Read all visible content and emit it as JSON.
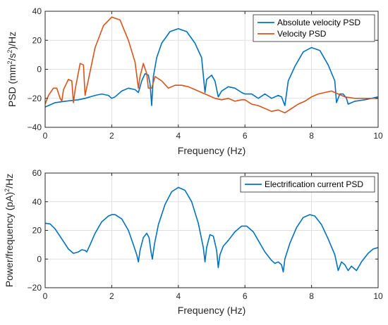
{
  "chart_data": [
    {
      "type": "line",
      "xlabel": "Frequency (Hz)",
      "ylabel_parts": {
        "a": "PSD (mm",
        "b": "2",
        "c": "/s",
        "d": "2",
        "e": ")/Hz"
      },
      "xlim": [
        0,
        10
      ],
      "ylim": [
        -40,
        40
      ],
      "xticks": [
        0,
        2,
        4,
        6,
        8,
        10
      ],
      "yticks": [
        -40,
        -20,
        0,
        20,
        40
      ],
      "xtick_labels": [
        "0",
        "2",
        "4",
        "6",
        "8",
        "10"
      ],
      "ytick_labels": [
        "−40",
        "−20",
        "0",
        "20",
        "40"
      ],
      "grid": true,
      "legend_position": "top-right",
      "series": [
        {
          "name": "Absolute velocity PSD",
          "color": "#0072BD",
          "points": [
            [
              0,
              -26
            ],
            [
              0.3,
              -23
            ],
            [
              0.6,
              -22
            ],
            [
              1.0,
              -21
            ],
            [
              1.2,
              -20
            ],
            [
              1.5,
              -18
            ],
            [
              1.7,
              -17
            ],
            [
              1.9,
              -18
            ],
            [
              2.0,
              -20
            ],
            [
              2.1,
              -19
            ],
            [
              2.3,
              -15
            ],
            [
              2.5,
              -13
            ],
            [
              2.7,
              -14
            ],
            [
              2.8,
              -16
            ],
            [
              2.9,
              -8
            ],
            [
              3.0,
              -3
            ],
            [
              3.1,
              -4
            ],
            [
              3.15,
              -10
            ],
            [
              3.2,
              -25
            ],
            [
              3.25,
              -5
            ],
            [
              3.35,
              8
            ],
            [
              3.5,
              18
            ],
            [
              3.75,
              26
            ],
            [
              4.0,
              28
            ],
            [
              4.25,
              26
            ],
            [
              4.5,
              18
            ],
            [
              4.7,
              8
            ],
            [
              4.8,
              -16
            ],
            [
              4.85,
              -7
            ],
            [
              5.0,
              -4
            ],
            [
              5.1,
              -8
            ],
            [
              5.2,
              -19
            ],
            [
              5.3,
              -15
            ],
            [
              5.5,
              -12
            ],
            [
              5.7,
              -13
            ],
            [
              5.9,
              -16
            ],
            [
              6.0,
              -17
            ],
            [
              6.2,
              -17
            ],
            [
              6.4,
              -20
            ],
            [
              6.6,
              -17
            ],
            [
              6.8,
              -20
            ],
            [
              7.0,
              -18
            ],
            [
              7.1,
              -19
            ],
            [
              7.2,
              -25
            ],
            [
              7.3,
              -8
            ],
            [
              7.5,
              2
            ],
            [
              7.75,
              12
            ],
            [
              8.0,
              15
            ],
            [
              8.25,
              13
            ],
            [
              8.5,
              3
            ],
            [
              8.7,
              -8
            ],
            [
              8.75,
              -23
            ],
            [
              8.85,
              -17
            ],
            [
              8.95,
              -17
            ],
            [
              9.05,
              -20
            ],
            [
              9.1,
              -24
            ],
            [
              9.3,
              -22
            ],
            [
              9.6,
              -21
            ],
            [
              9.8,
              -20
            ],
            [
              10.0,
              -19
            ]
          ]
        },
        {
          "name": "Velocity PSD",
          "color": "#D95319",
          "points": [
            [
              0,
              -24
            ],
            [
              0.1,
              -18
            ],
            [
              0.25,
              -13
            ],
            [
              0.35,
              -13
            ],
            [
              0.45,
              -20
            ],
            [
              0.5,
              -22
            ],
            [
              0.55,
              -14
            ],
            [
              0.7,
              -7
            ],
            [
              0.8,
              -8
            ],
            [
              0.85,
              -23
            ],
            [
              0.9,
              -14
            ],
            [
              1.05,
              4
            ],
            [
              1.15,
              3
            ],
            [
              1.2,
              -18
            ],
            [
              1.3,
              -7
            ],
            [
              1.5,
              15
            ],
            [
              1.75,
              30
            ],
            [
              2.0,
              36
            ],
            [
              2.25,
              34
            ],
            [
              2.5,
              20
            ],
            [
              2.7,
              5
            ],
            [
              2.8,
              -13
            ],
            [
              2.85,
              -5
            ],
            [
              2.95,
              4
            ],
            [
              3.05,
              -3
            ],
            [
              3.1,
              -13
            ],
            [
              3.2,
              -13
            ],
            [
              3.3,
              -5
            ],
            [
              3.5,
              -8
            ],
            [
              3.7,
              -13
            ],
            [
              3.9,
              -11
            ],
            [
              4.1,
              -11
            ],
            [
              4.3,
              -12
            ],
            [
              4.5,
              -14
            ],
            [
              4.7,
              -16
            ],
            [
              4.9,
              -18
            ],
            [
              5.1,
              -20
            ],
            [
              5.3,
              -21
            ],
            [
              5.5,
              -20
            ],
            [
              5.7,
              -22
            ],
            [
              5.9,
              -21
            ],
            [
              6.0,
              -21
            ],
            [
              6.2,
              -24
            ],
            [
              6.4,
              -25
            ],
            [
              6.6,
              -27
            ],
            [
              6.8,
              -29
            ],
            [
              7.0,
              -28
            ],
            [
              7.2,
              -30
            ],
            [
              7.4,
              -27
            ],
            [
              7.6,
              -24
            ],
            [
              7.8,
              -22
            ],
            [
              8.0,
              -19
            ],
            [
              8.2,
              -17
            ],
            [
              8.4,
              -16
            ],
            [
              8.6,
              -15
            ],
            [
              8.8,
              -17
            ],
            [
              9.0,
              -19
            ],
            [
              9.3,
              -20
            ],
            [
              9.6,
              -20
            ],
            [
              10.0,
              -20
            ]
          ]
        }
      ]
    },
    {
      "type": "line",
      "xlabel": "Frequency (Hz)",
      "ylabel_parts": {
        "a": "Power/frequency (pA)",
        "b": "2",
        "c": "/Hz"
      },
      "xlim": [
        0,
        10
      ],
      "ylim": [
        -20,
        60
      ],
      "xticks": [
        0,
        2,
        4,
        6,
        8,
        10
      ],
      "yticks": [
        -20,
        0,
        20,
        40,
        60
      ],
      "xtick_labels": [
        "0",
        "2",
        "4",
        "6",
        "8",
        "10"
      ],
      "ytick_labels": [
        "−20",
        "0",
        "20",
        "40",
        "60"
      ],
      "grid": true,
      "legend_position": "top-right",
      "series": [
        {
          "name": "Electrification current PSD",
          "color": "#0072BD",
          "points": [
            [
              0,
              25
            ],
            [
              0.15,
              24.5
            ],
            [
              0.3,
              21
            ],
            [
              0.5,
              14
            ],
            [
              0.7,
              7
            ],
            [
              0.85,
              4
            ],
            [
              1.0,
              5
            ],
            [
              1.1,
              6.5
            ],
            [
              1.2,
              6
            ],
            [
              1.25,
              5
            ],
            [
              1.35,
              10
            ],
            [
              1.5,
              18
            ],
            [
              1.7,
              26
            ],
            [
              1.9,
              30
            ],
            [
              2.0,
              31
            ],
            [
              2.1,
              31
            ],
            [
              2.3,
              28
            ],
            [
              2.5,
              20
            ],
            [
              2.65,
              10
            ],
            [
              2.75,
              3
            ],
            [
              2.8,
              -2
            ],
            [
              2.85,
              6
            ],
            [
              2.95,
              15
            ],
            [
              3.05,
              18
            ],
            [
              3.12,
              15
            ],
            [
              3.18,
              5
            ],
            [
              3.22,
              0
            ],
            [
              3.28,
              10
            ],
            [
              3.4,
              24
            ],
            [
              3.6,
              38
            ],
            [
              3.8,
              47
            ],
            [
              4.0,
              50
            ],
            [
              4.2,
              48
            ],
            [
              4.4,
              40
            ],
            [
              4.6,
              25
            ],
            [
              4.75,
              8
            ],
            [
              4.8,
              -2
            ],
            [
              4.85,
              8
            ],
            [
              4.95,
              17
            ],
            [
              5.05,
              16
            ],
            [
              5.15,
              6
            ],
            [
              5.2,
              -6
            ],
            [
              5.25,
              3
            ],
            [
              5.35,
              9
            ],
            [
              5.5,
              13
            ],
            [
              5.7,
              19
            ],
            [
              5.9,
              23
            ],
            [
              6.05,
              23
            ],
            [
              6.25,
              19
            ],
            [
              6.45,
              11
            ],
            [
              6.6,
              5
            ],
            [
              6.8,
              -1
            ],
            [
              6.9,
              -3
            ],
            [
              7.0,
              -2
            ],
            [
              7.1,
              -4
            ],
            [
              7.15,
              -9
            ],
            [
              7.2,
              0
            ],
            [
              7.35,
              11
            ],
            [
              7.55,
              22
            ],
            [
              7.75,
              29
            ],
            [
              7.95,
              31
            ],
            [
              8.1,
              30
            ],
            [
              8.3,
              24
            ],
            [
              8.5,
              14
            ],
            [
              8.7,
              3
            ],
            [
              8.8,
              -8
            ],
            [
              8.9,
              -2
            ],
            [
              9.0,
              -4
            ],
            [
              9.1,
              -8
            ],
            [
              9.2,
              -5
            ],
            [
              9.35,
              -8
            ],
            [
              9.5,
              -2
            ],
            [
              9.7,
              4
            ],
            [
              9.85,
              7
            ],
            [
              10.0,
              8
            ]
          ]
        }
      ]
    }
  ]
}
